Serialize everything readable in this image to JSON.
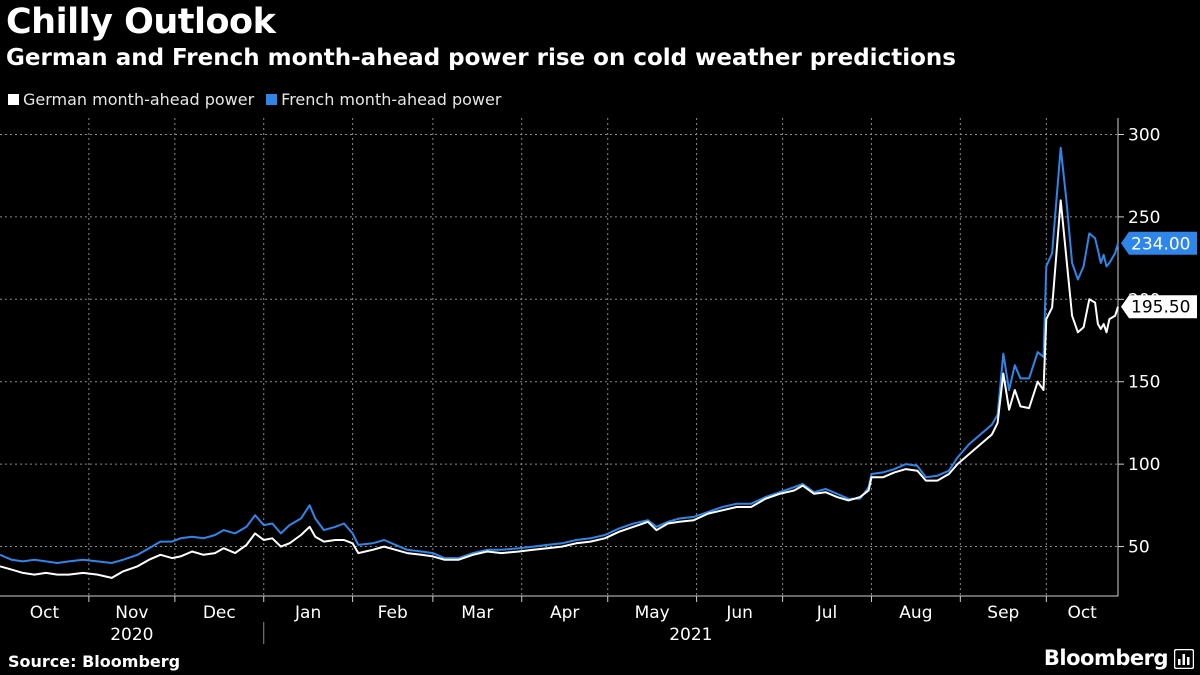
{
  "title": "Chilly Outlook",
  "subtitle": "German and French month-ahead power rise on cold weather predictions",
  "source": "Source: Bloomberg",
  "brand": "Bloomberg",
  "chart_data": {
    "type": "line",
    "ylim": [
      20,
      310
    ],
    "yticks": [
      50,
      100,
      150,
      200,
      250,
      300
    ],
    "grid": true,
    "legend_placement": "top-left",
    "x_start": "2020-10-01",
    "x_end": "2021-10-26",
    "month_ticks": [
      {
        "label": "Oct",
        "date": "2020-10-01"
      },
      {
        "label": "Nov",
        "date": "2020-11-01"
      },
      {
        "label": "Dec",
        "date": "2020-12-01"
      },
      {
        "label": "Jan",
        "date": "2021-01-01"
      },
      {
        "label": "Feb",
        "date": "2021-02-01"
      },
      {
        "label": "Mar",
        "date": "2021-03-01"
      },
      {
        "label": "Apr",
        "date": "2021-04-01"
      },
      {
        "label": "May",
        "date": "2021-05-01"
      },
      {
        "label": "Jun",
        "date": "2021-06-01"
      },
      {
        "label": "Jul",
        "date": "2021-07-01"
      },
      {
        "label": "Aug",
        "date": "2021-08-01"
      },
      {
        "label": "Sep",
        "date": "2021-09-01"
      },
      {
        "label": "Oct",
        "date": "2021-10-01"
      }
    ],
    "year_labels": [
      {
        "label": "2020",
        "from": "2020-10-01",
        "to": "2021-01-01"
      },
      {
        "label": "2021",
        "from": "2021-01-01",
        "to": "2021-10-26"
      }
    ],
    "series": [
      {
        "name": "German month-ahead power",
        "color": "#ffffff",
        "last_value_label": "195.50",
        "points": [
          [
            "2020-10-01",
            38
          ],
          [
            "2020-10-05",
            36
          ],
          [
            "2020-10-09",
            34
          ],
          [
            "2020-10-13",
            33
          ],
          [
            "2020-10-17",
            34
          ],
          [
            "2020-10-21",
            33
          ],
          [
            "2020-10-25",
            33
          ],
          [
            "2020-10-30",
            34
          ],
          [
            "2020-11-04",
            33
          ],
          [
            "2020-11-09",
            31
          ],
          [
            "2020-11-13",
            35
          ],
          [
            "2020-11-18",
            38
          ],
          [
            "2020-11-22",
            42
          ],
          [
            "2020-11-26",
            45
          ],
          [
            "2020-11-30",
            43
          ],
          [
            "2020-12-03",
            44
          ],
          [
            "2020-12-07",
            47
          ],
          [
            "2020-12-11",
            45
          ],
          [
            "2020-12-15",
            46
          ],
          [
            "2020-12-18",
            49
          ],
          [
            "2020-12-22",
            46
          ],
          [
            "2020-12-26",
            51
          ],
          [
            "2020-12-29",
            58
          ],
          [
            "2021-01-01",
            54
          ],
          [
            "2021-01-04",
            55
          ],
          [
            "2021-01-07",
            50
          ],
          [
            "2021-01-10",
            52
          ],
          [
            "2021-01-14",
            57
          ],
          [
            "2021-01-17",
            62
          ],
          [
            "2021-01-19",
            56
          ],
          [
            "2021-01-22",
            53
          ],
          [
            "2021-01-26",
            54
          ],
          [
            "2021-01-29",
            54
          ],
          [
            "2021-02-01",
            52
          ],
          [
            "2021-02-03",
            46
          ],
          [
            "2021-02-08",
            48
          ],
          [
            "2021-02-12",
            50
          ],
          [
            "2021-02-16",
            48
          ],
          [
            "2021-02-20",
            46
          ],
          [
            "2021-02-25",
            45
          ],
          [
            "2021-03-01",
            44
          ],
          [
            "2021-03-05",
            42
          ],
          [
            "2021-03-10",
            42
          ],
          [
            "2021-03-15",
            45
          ],
          [
            "2021-03-20",
            47
          ],
          [
            "2021-03-25",
            46
          ],
          [
            "2021-03-31",
            47
          ],
          [
            "2021-04-05",
            48
          ],
          [
            "2021-04-10",
            49
          ],
          [
            "2021-04-15",
            50
          ],
          [
            "2021-04-20",
            52
          ],
          [
            "2021-04-25",
            53
          ],
          [
            "2021-04-30",
            55
          ],
          [
            "2021-05-05",
            59
          ],
          [
            "2021-05-10",
            62
          ],
          [
            "2021-05-15",
            65
          ],
          [
            "2021-05-18",
            60
          ],
          [
            "2021-05-22",
            64
          ],
          [
            "2021-05-26",
            65
          ],
          [
            "2021-05-31",
            66
          ],
          [
            "2021-06-05",
            70
          ],
          [
            "2021-06-10",
            72
          ],
          [
            "2021-06-15",
            74
          ],
          [
            "2021-06-20",
            74
          ],
          [
            "2021-06-25",
            79
          ],
          [
            "2021-06-30",
            82
          ],
          [
            "2021-07-05",
            84
          ],
          [
            "2021-07-08",
            87
          ],
          [
            "2021-07-12",
            82
          ],
          [
            "2021-07-16",
            83
          ],
          [
            "2021-07-20",
            80
          ],
          [
            "2021-07-24",
            78
          ],
          [
            "2021-07-28",
            80
          ],
          [
            "2021-07-31",
            84
          ],
          [
            "2021-08-01",
            92
          ],
          [
            "2021-08-05",
            92
          ],
          [
            "2021-08-09",
            95
          ],
          [
            "2021-08-13",
            97
          ],
          [
            "2021-08-17",
            96
          ],
          [
            "2021-08-20",
            90
          ],
          [
            "2021-08-24",
            90
          ],
          [
            "2021-08-28",
            94
          ],
          [
            "2021-08-31",
            100
          ],
          [
            "2021-09-04",
            106
          ],
          [
            "2021-09-08",
            112
          ],
          [
            "2021-09-12",
            118
          ],
          [
            "2021-09-14",
            125
          ],
          [
            "2021-09-16",
            155
          ],
          [
            "2021-09-18",
            133
          ],
          [
            "2021-09-20",
            145
          ],
          [
            "2021-09-22",
            135
          ],
          [
            "2021-09-25",
            134
          ],
          [
            "2021-09-28",
            150
          ],
          [
            "2021-09-30",
            145
          ],
          [
            "2021-10-01",
            188
          ],
          [
            "2021-10-03",
            195
          ],
          [
            "2021-10-06",
            260
          ],
          [
            "2021-10-08",
            225
          ],
          [
            "2021-10-10",
            190
          ],
          [
            "2021-10-12",
            180
          ],
          [
            "2021-10-14",
            183
          ],
          [
            "2021-10-16",
            200
          ],
          [
            "2021-10-18",
            198
          ],
          [
            "2021-10-19",
            185
          ],
          [
            "2021-10-20",
            182
          ],
          [
            "2021-10-21",
            185
          ],
          [
            "2021-10-22",
            180
          ],
          [
            "2021-10-23",
            188
          ],
          [
            "2021-10-25",
            190
          ],
          [
            "2021-10-26",
            195.5
          ]
        ]
      },
      {
        "name": "French month-ahead power",
        "color": "#2f86ea",
        "last_value_label": "234.00",
        "points": [
          [
            "2020-10-01",
            45
          ],
          [
            "2020-10-05",
            42
          ],
          [
            "2020-10-09",
            41
          ],
          [
            "2020-10-13",
            42
          ],
          [
            "2020-10-17",
            41
          ],
          [
            "2020-10-21",
            40
          ],
          [
            "2020-10-25",
            41
          ],
          [
            "2020-10-30",
            42
          ],
          [
            "2020-11-04",
            41
          ],
          [
            "2020-11-09",
            40
          ],
          [
            "2020-11-13",
            42
          ],
          [
            "2020-11-18",
            45
          ],
          [
            "2020-11-22",
            49
          ],
          [
            "2020-11-26",
            53
          ],
          [
            "2020-11-30",
            53
          ],
          [
            "2020-12-03",
            55
          ],
          [
            "2020-12-07",
            56
          ],
          [
            "2020-12-11",
            55
          ],
          [
            "2020-12-15",
            57
          ],
          [
            "2020-12-18",
            60
          ],
          [
            "2020-12-22",
            58
          ],
          [
            "2020-12-26",
            62
          ],
          [
            "2020-12-29",
            69
          ],
          [
            "2021-01-01",
            63
          ],
          [
            "2021-01-04",
            64
          ],
          [
            "2021-01-07",
            58
          ],
          [
            "2021-01-10",
            63
          ],
          [
            "2021-01-14",
            67
          ],
          [
            "2021-01-17",
            75
          ],
          [
            "2021-01-19",
            67
          ],
          [
            "2021-01-22",
            60
          ],
          [
            "2021-01-26",
            62
          ],
          [
            "2021-01-29",
            64
          ],
          [
            "2021-02-01",
            58
          ],
          [
            "2021-02-03",
            51
          ],
          [
            "2021-02-08",
            52
          ],
          [
            "2021-02-12",
            54
          ],
          [
            "2021-02-16",
            51
          ],
          [
            "2021-02-20",
            48
          ],
          [
            "2021-02-25",
            47
          ],
          [
            "2021-03-01",
            46
          ],
          [
            "2021-03-05",
            43
          ],
          [
            "2021-03-10",
            43
          ],
          [
            "2021-03-15",
            46
          ],
          [
            "2021-03-20",
            48
          ],
          [
            "2021-03-25",
            48
          ],
          [
            "2021-03-31",
            49
          ],
          [
            "2021-04-05",
            50
          ],
          [
            "2021-04-10",
            51
          ],
          [
            "2021-04-15",
            52
          ],
          [
            "2021-04-20",
            54
          ],
          [
            "2021-04-25",
            55
          ],
          [
            "2021-04-30",
            57
          ],
          [
            "2021-05-05",
            61
          ],
          [
            "2021-05-10",
            64
          ],
          [
            "2021-05-15",
            66
          ],
          [
            "2021-05-18",
            62
          ],
          [
            "2021-05-22",
            65
          ],
          [
            "2021-05-26",
            67
          ],
          [
            "2021-05-31",
            68
          ],
          [
            "2021-06-05",
            71
          ],
          [
            "2021-06-10",
            74
          ],
          [
            "2021-06-15",
            76
          ],
          [
            "2021-06-20",
            76
          ],
          [
            "2021-06-25",
            80
          ],
          [
            "2021-06-30",
            83
          ],
          [
            "2021-07-05",
            86
          ],
          [
            "2021-07-08",
            88
          ],
          [
            "2021-07-12",
            83
          ],
          [
            "2021-07-16",
            85
          ],
          [
            "2021-07-20",
            82
          ],
          [
            "2021-07-24",
            79
          ],
          [
            "2021-07-28",
            79
          ],
          [
            "2021-07-31",
            86
          ],
          [
            "2021-08-01",
            94
          ],
          [
            "2021-08-05",
            95
          ],
          [
            "2021-08-09",
            97
          ],
          [
            "2021-08-13",
            100
          ],
          [
            "2021-08-17",
            99
          ],
          [
            "2021-08-20",
            92
          ],
          [
            "2021-08-24",
            93
          ],
          [
            "2021-08-28",
            96
          ],
          [
            "2021-08-31",
            104
          ],
          [
            "2021-09-04",
            112
          ],
          [
            "2021-09-08",
            118
          ],
          [
            "2021-09-12",
            124
          ],
          [
            "2021-09-14",
            130
          ],
          [
            "2021-09-16",
            167
          ],
          [
            "2021-09-18",
            145
          ],
          [
            "2021-09-20",
            160
          ],
          [
            "2021-09-22",
            152
          ],
          [
            "2021-09-25",
            152
          ],
          [
            "2021-09-28",
            168
          ],
          [
            "2021-09-30",
            165
          ],
          [
            "2021-10-01",
            220
          ],
          [
            "2021-10-03",
            228
          ],
          [
            "2021-10-06",
            292
          ],
          [
            "2021-10-08",
            260
          ],
          [
            "2021-10-10",
            222
          ],
          [
            "2021-10-12",
            212
          ],
          [
            "2021-10-14",
            220
          ],
          [
            "2021-10-16",
            240
          ],
          [
            "2021-10-18",
            237
          ],
          [
            "2021-10-19",
            230
          ],
          [
            "2021-10-20",
            222
          ],
          [
            "2021-10-21",
            227
          ],
          [
            "2021-10-22",
            220
          ],
          [
            "2021-10-23",
            222
          ],
          [
            "2021-10-25",
            228
          ],
          [
            "2021-10-26",
            234
          ]
        ]
      }
    ]
  }
}
